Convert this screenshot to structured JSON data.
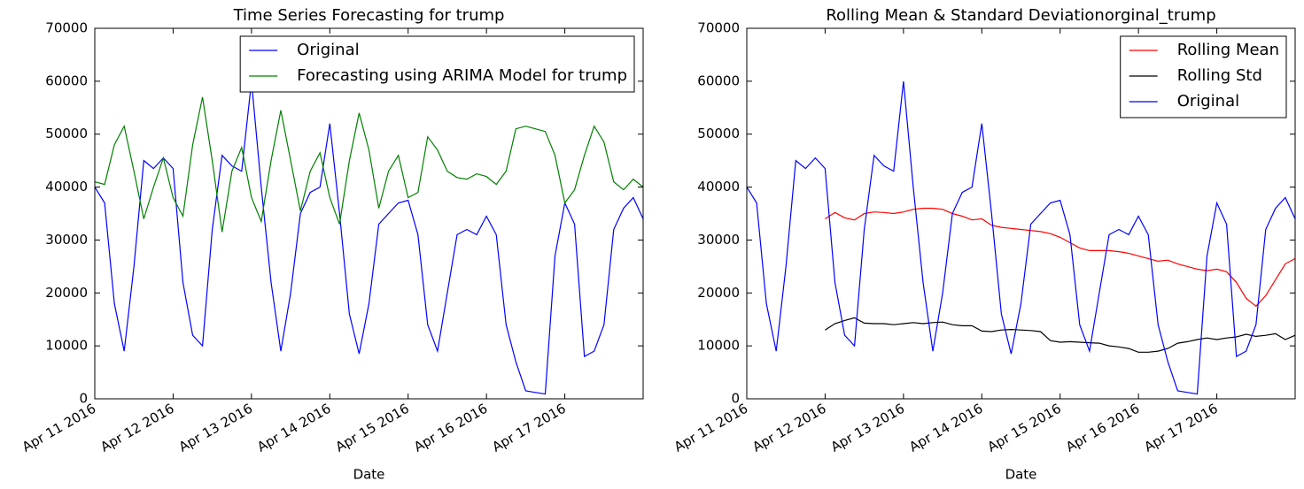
{
  "chart_data": [
    {
      "type": "line",
      "title": "Time Series Forecasting for trump",
      "x_label": "Date",
      "x": [
        "2016-04-11 00:00",
        "2016-04-11 03:00",
        "2016-04-11 06:00",
        "2016-04-11 09:00",
        "2016-04-11 12:00",
        "2016-04-11 15:00",
        "2016-04-11 18:00",
        "2016-04-11 21:00",
        "2016-04-12 00:00",
        "2016-04-12 03:00",
        "2016-04-12 06:00",
        "2016-04-12 09:00",
        "2016-04-12 12:00",
        "2016-04-12 15:00",
        "2016-04-12 18:00",
        "2016-04-12 21:00",
        "2016-04-13 00:00",
        "2016-04-13 03:00",
        "2016-04-13 06:00",
        "2016-04-13 09:00",
        "2016-04-13 12:00",
        "2016-04-13 15:00",
        "2016-04-13 18:00",
        "2016-04-13 21:00",
        "2016-04-14 00:00",
        "2016-04-14 03:00",
        "2016-04-14 06:00",
        "2016-04-14 09:00",
        "2016-04-14 12:00",
        "2016-04-14 15:00",
        "2016-04-14 18:00",
        "2016-04-14 21:00",
        "2016-04-15 00:00",
        "2016-04-15 03:00",
        "2016-04-15 06:00",
        "2016-04-15 09:00",
        "2016-04-15 12:00",
        "2016-04-15 15:00",
        "2016-04-15 18:00",
        "2016-04-15 21:00",
        "2016-04-16 00:00",
        "2016-04-16 03:00",
        "2016-04-16 06:00",
        "2016-04-16 09:00",
        "2016-04-16 12:00",
        "2016-04-16 15:00",
        "2016-04-16 18:00",
        "2016-04-16 21:00",
        "2016-04-17 00:00",
        "2016-04-17 03:00",
        "2016-04-17 06:00",
        "2016-04-17 09:00",
        "2016-04-17 12:00",
        "2016-04-17 15:00",
        "2016-04-17 18:00",
        "2016-04-17 21:00",
        "2016-04-18 00:00"
      ],
      "series": [
        {
          "name": "Original",
          "color": "#0000ff",
          "values": [
            40000,
            37000,
            18000,
            9000,
            25000,
            45000,
            43500,
            45500,
            43500,
            22000,
            12000,
            10000,
            32000,
            46000,
            44000,
            43000,
            60000,
            40000,
            22000,
            9000,
            20000,
            35000,
            39000,
            40000,
            52000,
            35000,
            16000,
            8500,
            18000,
            33000,
            35000,
            37000,
            37500,
            31000,
            14000,
            9000,
            20000,
            31000,
            32000,
            31000,
            34500,
            31000,
            14000,
            7000,
            1500,
            1200,
            900,
            27000,
            37000,
            33000,
            8000,
            9000,
            14000,
            32000,
            36000,
            38000,
            34000
          ]
        },
        {
          "name": "Forecasting using ARIMA Model for trump",
          "color": "#008000",
          "values": [
            41000,
            40500,
            48000,
            51500,
            43000,
            34000,
            40000,
            45500,
            38000,
            34500,
            48000,
            57000,
            45000,
            31500,
            43000,
            47500,
            38000,
            33500,
            45000,
            54500,
            45000,
            35500,
            43000,
            46500,
            38000,
            33000,
            45000,
            54000,
            47000,
            36000,
            43000,
            46000,
            38000,
            39000,
            49500,
            47000,
            43000,
            41800,
            41500,
            42500,
            42000,
            40500,
            43000,
            51000,
            51500,
            51000,
            50500,
            46000,
            37000,
            39500,
            46000,
            51500,
            48500,
            41000,
            39500,
            41500,
            40000
          ]
        }
      ],
      "xlim": [
        "2016-04-11 00:00",
        "2016-04-18 00:00"
      ],
      "xticks": [
        {
          "value": "2016-04-11",
          "label": "Apr 11 2016"
        },
        {
          "value": "2016-04-12",
          "label": "Apr 12 2016"
        },
        {
          "value": "2016-04-13",
          "label": "Apr 13 2016"
        },
        {
          "value": "2016-04-14",
          "label": "Apr 14 2016"
        },
        {
          "value": "2016-04-15",
          "label": "Apr 15 2016"
        },
        {
          "value": "2016-04-16",
          "label": "Apr 16 2016"
        },
        {
          "value": "2016-04-17",
          "label": "Apr 17 2016"
        }
      ],
      "ylim": [
        0,
        70000
      ],
      "yticks": [
        0,
        10000,
        20000,
        30000,
        40000,
        50000,
        60000,
        70000
      ],
      "legend": "upper right"
    },
    {
      "type": "line",
      "title": "Rolling Mean & Standard Deviationorginal_trump",
      "x_label": "Date",
      "x": [
        "2016-04-11 00:00",
        "2016-04-11 03:00",
        "2016-04-11 06:00",
        "2016-04-11 09:00",
        "2016-04-11 12:00",
        "2016-04-11 15:00",
        "2016-04-11 18:00",
        "2016-04-11 21:00",
        "2016-04-12 00:00",
        "2016-04-12 03:00",
        "2016-04-12 06:00",
        "2016-04-12 09:00",
        "2016-04-12 12:00",
        "2016-04-12 15:00",
        "2016-04-12 18:00",
        "2016-04-12 21:00",
        "2016-04-13 00:00",
        "2016-04-13 03:00",
        "2016-04-13 06:00",
        "2016-04-13 09:00",
        "2016-04-13 12:00",
        "2016-04-13 15:00",
        "2016-04-13 18:00",
        "2016-04-13 21:00",
        "2016-04-14 00:00",
        "2016-04-14 03:00",
        "2016-04-14 06:00",
        "2016-04-14 09:00",
        "2016-04-14 12:00",
        "2016-04-14 15:00",
        "2016-04-14 18:00",
        "2016-04-14 21:00",
        "2016-04-15 00:00",
        "2016-04-15 03:00",
        "2016-04-15 06:00",
        "2016-04-15 09:00",
        "2016-04-15 12:00",
        "2016-04-15 15:00",
        "2016-04-15 18:00",
        "2016-04-15 21:00",
        "2016-04-16 00:00",
        "2016-04-16 03:00",
        "2016-04-16 06:00",
        "2016-04-16 09:00",
        "2016-04-16 12:00",
        "2016-04-16 15:00",
        "2016-04-16 18:00",
        "2016-04-16 21:00",
        "2016-04-17 00:00",
        "2016-04-17 03:00",
        "2016-04-17 06:00",
        "2016-04-17 09:00",
        "2016-04-17 12:00",
        "2016-04-17 15:00",
        "2016-04-17 18:00",
        "2016-04-17 21:00",
        "2016-04-18 00:00"
      ],
      "series": [
        {
          "name": "Rolling Mean",
          "color": "#ff0000",
          "values": [
            null,
            null,
            null,
            null,
            null,
            null,
            null,
            null,
            34000,
            35200,
            34200,
            33800,
            35000,
            35300,
            35200,
            35000,
            35300,
            35800,
            36000,
            36000,
            35800,
            35000,
            34500,
            33800,
            34000,
            32800,
            32400,
            32200,
            32000,
            31800,
            31600,
            31200,
            30500,
            29500,
            28500,
            28000,
            28000,
            28000,
            27800,
            27500,
            27000,
            26500,
            26000,
            26200,
            25500,
            25000,
            24500,
            24200,
            24500,
            24000,
            22000,
            19000,
            17500,
            19500,
            22500,
            25500,
            26500
          ]
        },
        {
          "name": "Rolling Std",
          "color": "#000000",
          "values": [
            null,
            null,
            null,
            null,
            null,
            null,
            null,
            null,
            13000,
            14200,
            14800,
            15300,
            14300,
            14200,
            14200,
            14000,
            14200,
            14400,
            14200,
            14400,
            14500,
            14000,
            13800,
            13800,
            12800,
            12700,
            13000,
            13100,
            13000,
            12900,
            12700,
            11000,
            10700,
            10800,
            10700,
            10600,
            10500,
            10000,
            9800,
            9500,
            8800,
            8800,
            9000,
            9500,
            10500,
            10800,
            11200,
            11500,
            11200,
            11500,
            11700,
            12200,
            11800,
            12000,
            12300,
            11200,
            12000
          ]
        },
        {
          "name": "Original",
          "color": "#0000ff",
          "values": [
            40000,
            37000,
            18000,
            9000,
            25000,
            45000,
            43500,
            45500,
            43500,
            22000,
            12000,
            10000,
            32000,
            46000,
            44000,
            43000,
            60000,
            40000,
            22000,
            9000,
            20000,
            35000,
            39000,
            40000,
            52000,
            35000,
            16000,
            8500,
            18000,
            33000,
            35000,
            37000,
            37500,
            31000,
            14000,
            9000,
            20000,
            31000,
            32000,
            31000,
            34500,
            31000,
            14000,
            7000,
            1500,
            1200,
            900,
            27000,
            37000,
            33000,
            8000,
            9000,
            14000,
            32000,
            36000,
            38000,
            34000
          ]
        }
      ],
      "xlim": [
        "2016-04-11 00:00",
        "2016-04-18 00:00"
      ],
      "xticks": [
        {
          "value": "2016-04-11",
          "label": "Apr 11 2016"
        },
        {
          "value": "2016-04-12",
          "label": "Apr 12 2016"
        },
        {
          "value": "2016-04-13",
          "label": "Apr 13 2016"
        },
        {
          "value": "2016-04-14",
          "label": "Apr 14 2016"
        },
        {
          "value": "2016-04-15",
          "label": "Apr 15 2016"
        },
        {
          "value": "2016-04-16",
          "label": "Apr 16 2016"
        },
        {
          "value": "2016-04-17",
          "label": "Apr 17 2016"
        }
      ],
      "ylim": [
        0,
        70000
      ],
      "yticks": [
        0,
        10000,
        20000,
        30000,
        40000,
        50000,
        60000,
        70000
      ],
      "legend": "upper right"
    }
  ]
}
